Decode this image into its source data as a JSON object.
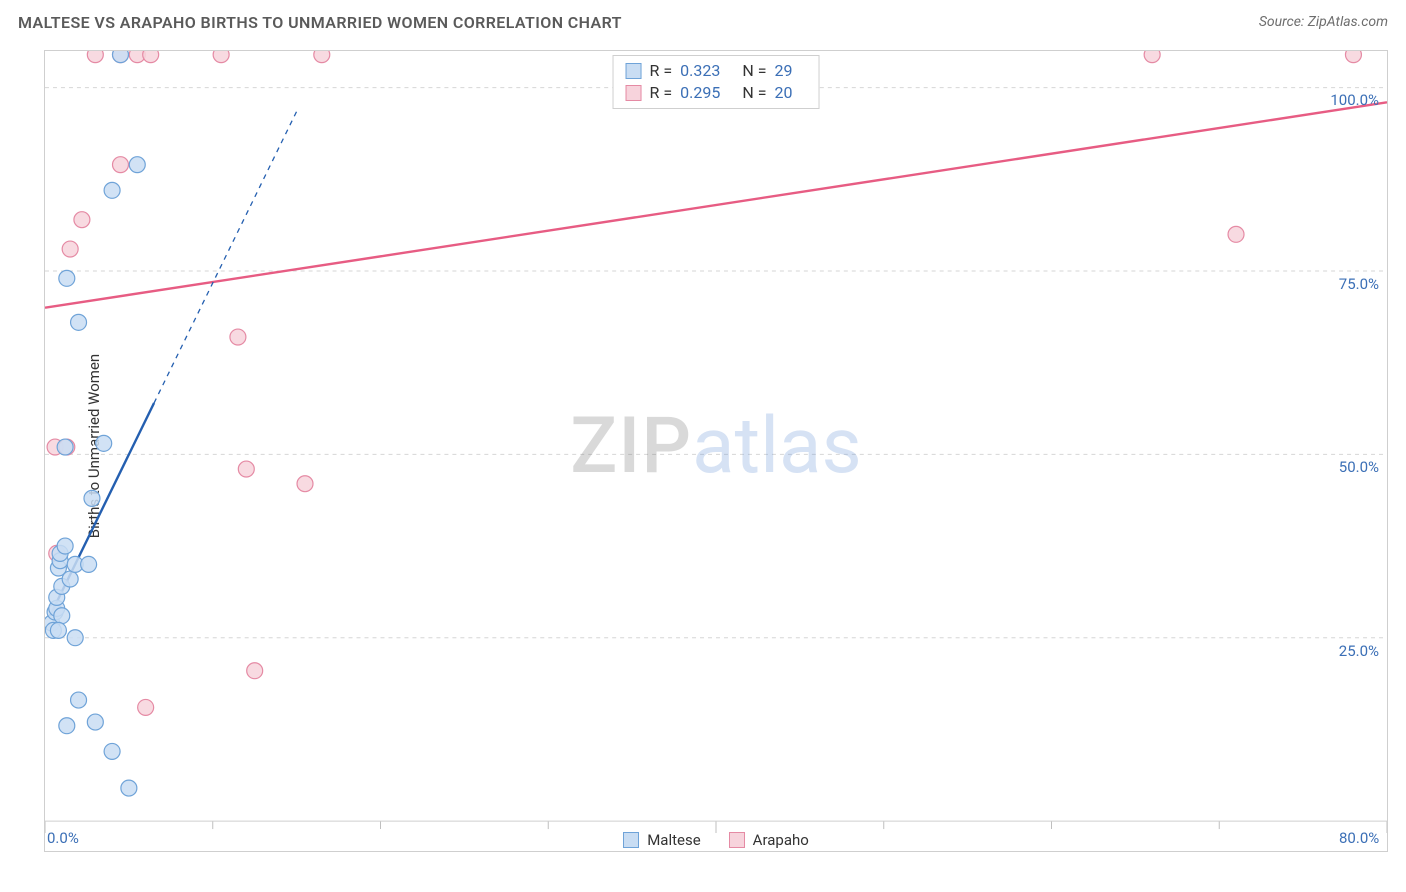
{
  "title": "MALTESE VS ARAPAHO BIRTHS TO UNMARRIED WOMEN CORRELATION CHART",
  "source_label": "Source: ZipAtlas.com",
  "y_axis_label": "Births to Unmarried Women",
  "watermark": {
    "part1": "ZIP",
    "part2": "atlas"
  },
  "chart": {
    "type": "scatter",
    "xlim": [
      0,
      80
    ],
    "ylim": [
      0,
      105
    ],
    "x_ticks_major": [
      0,
      40,
      80
    ],
    "x_ticks_minor": [
      10,
      20,
      30,
      50,
      60,
      70
    ],
    "x_tick_labels": {
      "0": "0.0%",
      "80": "80.0%"
    },
    "y_gridlines": [
      25,
      50,
      75,
      100
    ],
    "y_tick_labels": {
      "25": "25.0%",
      "50": "50.0%",
      "75": "75.0%",
      "100": "100.0%"
    },
    "grid_color": "#d6d6d6",
    "background_color": "#ffffff",
    "marker_radius": 8,
    "marker_stroke_width": 1.2,
    "trend_line_width_solid": 2.4,
    "trend_line_width_dash": 1.3,
    "dash_pattern": "5,5",
    "axis_tick_color": "#bfbfbf",
    "series": {
      "maltese": {
        "label": "Maltese",
        "fill": "#c9ddf3",
        "stroke": "#6fa3d8",
        "line_color": "#245fb0",
        "R": "0.323",
        "N": "29",
        "trend": {
          "x1": 0.3,
          "y1": 28,
          "x2": 6.5,
          "y2": 57,
          "extend_to_x": 15.0
        },
        "points": [
          [
            0.4,
            27.0
          ],
          [
            0.5,
            26.0
          ],
          [
            0.6,
            28.5
          ],
          [
            0.7,
            29.0
          ],
          [
            0.7,
            30.5
          ],
          [
            0.8,
            34.5
          ],
          [
            0.9,
            35.5
          ],
          [
            0.9,
            36.5
          ],
          [
            1.0,
            28.0
          ],
          [
            1.0,
            32.0
          ],
          [
            1.2,
            37.5
          ],
          [
            1.5,
            33.0
          ],
          [
            1.8,
            35.0
          ],
          [
            2.6,
            35.0
          ],
          [
            1.3,
            13.0
          ],
          [
            3.0,
            13.5
          ],
          [
            4.0,
            9.5
          ],
          [
            1.8,
            25.0
          ],
          [
            0.8,
            26.0
          ],
          [
            2.0,
            16.5
          ],
          [
            5.0,
            4.5
          ],
          [
            2.8,
            44.0
          ],
          [
            3.5,
            51.5
          ],
          [
            1.2,
            51.0
          ],
          [
            2.0,
            68.0
          ],
          [
            1.3,
            74.0
          ],
          [
            4.0,
            86.0
          ],
          [
            5.5,
            89.5
          ],
          [
            4.5,
            104.5
          ]
        ]
      },
      "arapaho": {
        "label": "Arapaho",
        "fill": "#f7d3dc",
        "stroke": "#e58aa4",
        "line_color": "#e75c83",
        "R": "0.295",
        "N": "20",
        "trend": {
          "x1": 0,
          "y1": 70,
          "x2": 80,
          "y2": 98
        },
        "points": [
          [
            0.7,
            36.5
          ],
          [
            0.6,
            51.0
          ],
          [
            1.3,
            51.0
          ],
          [
            1.5,
            78.0
          ],
          [
            2.2,
            82.0
          ],
          [
            4.5,
            89.5
          ],
          [
            6.0,
            15.5
          ],
          [
            12.0,
            48.0
          ],
          [
            11.5,
            66.0
          ],
          [
            12.5,
            20.5
          ],
          [
            15.5,
            46.0
          ],
          [
            3.0,
            104.5
          ],
          [
            4.5,
            104.5
          ],
          [
            5.5,
            104.5
          ],
          [
            6.3,
            104.5
          ],
          [
            10.5,
            104.5
          ],
          [
            16.5,
            104.5
          ],
          [
            66.0,
            104.5
          ],
          [
            78.0,
            104.5
          ],
          [
            71.0,
            80.0
          ]
        ]
      }
    }
  },
  "legend_top": {
    "r_label": "R =",
    "n_label": "N ="
  },
  "legend_bottom": {
    "items": [
      "maltese",
      "arapaho"
    ]
  }
}
